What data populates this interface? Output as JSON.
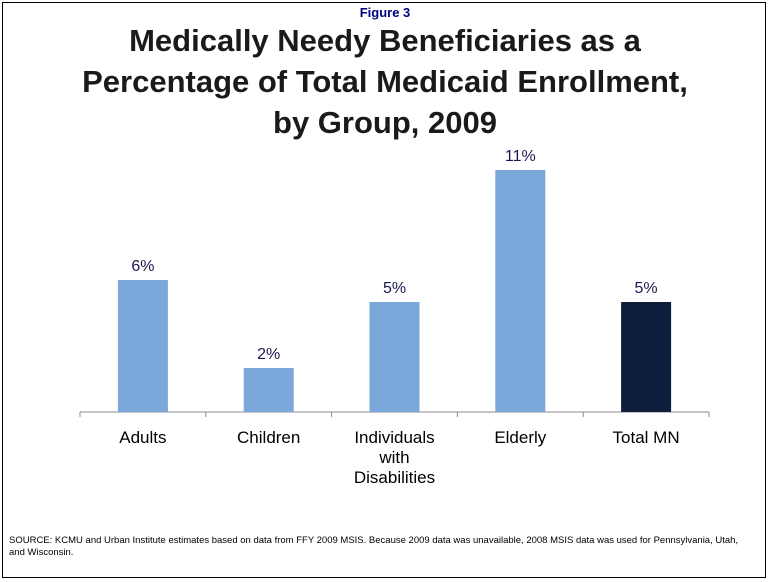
{
  "figure_label": "Figure 3",
  "chart_data": {
    "type": "bar",
    "title": "Medically Needy Beneficiaries as a Percentage of Total Medicaid Enrollment, by Group, 2009",
    "title_lines": [
      "Medically Needy Beneficiaries as a",
      "Percentage of Total Medicaid Enrollment,",
      "by Group, 2009"
    ],
    "categories": [
      "Adults",
      "Children",
      "Individuals with Disabilities",
      "Elderly",
      "Total MN"
    ],
    "category_lines": [
      [
        "Adults"
      ],
      [
        "Children"
      ],
      [
        "Individuals",
        "with",
        "Disabilities"
      ],
      [
        "Elderly"
      ],
      [
        "Total MN"
      ]
    ],
    "values": [
      6,
      2,
      5,
      11,
      5
    ],
    "data_labels": [
      "6%",
      "2%",
      "5%",
      "11%",
      "5%"
    ],
    "bar_colors": [
      "#7ba7db",
      "#7ba7db",
      "#7ba7db",
      "#7ba7db",
      "#0d1f3c"
    ],
    "ylim": [
      0,
      12
    ],
    "grid": false,
    "legend": "none",
    "xlabel": "",
    "ylabel": ""
  },
  "source": "SOURCE: KCMU and Urban Institute estimates based on data from FFY 2009 MSIS.  Because 2009 data was unavailable, 2008 MSIS data was used for Pennsylvania, Utah, and Wisconsin."
}
